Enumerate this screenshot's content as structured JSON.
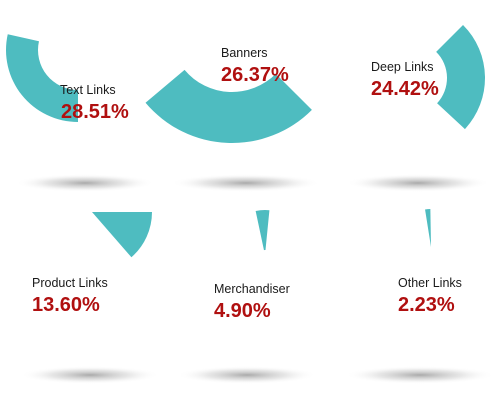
{
  "chart_data": {
    "type": "pie",
    "colors": {
      "slice": "#4ebcc0",
      "label_text": "#1a1a1a",
      "percent_text": "#b01010"
    },
    "panels": [
      {
        "label": "Text Links",
        "value": 28.51,
        "value_text": "28.51%"
      },
      {
        "label": "Banners",
        "value": 26.37,
        "value_text": "26.37%"
      },
      {
        "label": "Deep Links",
        "value": 24.42,
        "value_text": "24.42%"
      },
      {
        "label": "Product Links",
        "value": 13.6,
        "value_text": "13.60%"
      },
      {
        "label": "Merchandiser",
        "value": 4.9,
        "value_text": "4.90%"
      },
      {
        "label": "Other Links",
        "value": 2.23,
        "value_text": "2.23%"
      }
    ]
  }
}
